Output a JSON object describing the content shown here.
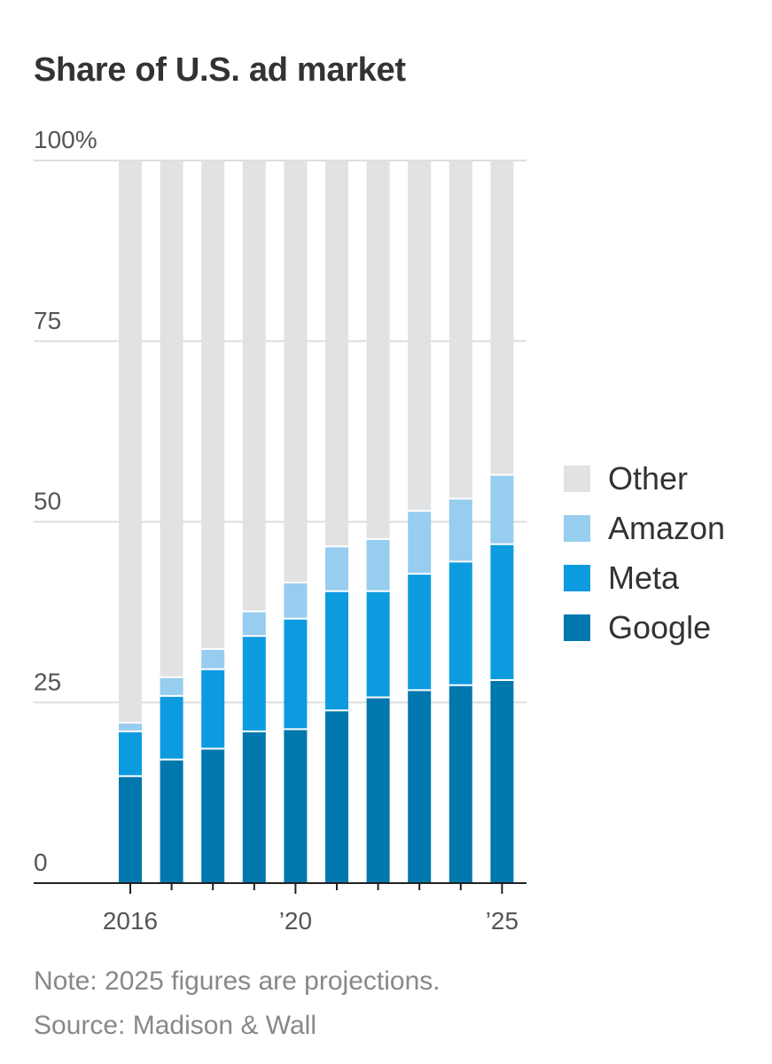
{
  "title": "Share of U.S. ad market",
  "note": "Note: 2025 figures are projections.",
  "source": "Source: Madison & Wall",
  "legend": [
    {
      "label": "Other",
      "color": "#e1e2e4"
    },
    {
      "label": "Amazon",
      "color": "#97cdef"
    },
    {
      "label": "Meta",
      "color": "#0d9be0"
    },
    {
      "label": "Google",
      "color": "#0078ae"
    }
  ],
  "chart_data": {
    "type": "bar",
    "stacked": true,
    "title": "Share of U.S. ad market",
    "categories": [
      "2016",
      "2017",
      "2018",
      "2019",
      "2020",
      "2021",
      "2022",
      "2023",
      "2024",
      "2025"
    ],
    "x_tick_labels": [
      {
        "category": "2016",
        "label": "2016"
      },
      {
        "category": "2020",
        "label": "’20"
      },
      {
        "category": "2025",
        "label": "’25"
      }
    ],
    "y_tick_labels": [
      "0",
      "25",
      "50",
      "75",
      "100%"
    ],
    "y_ticks": [
      0,
      25,
      50,
      75,
      100
    ],
    "ylim": [
      0,
      100
    ],
    "grid": true,
    "legend_position": "right",
    "series": [
      {
        "name": "Google",
        "color": "#0078ae",
        "values": [
          14.8,
          17.1,
          18.6,
          21.0,
          21.3,
          23.9,
          25.7,
          26.7,
          27.4,
          28.1
        ]
      },
      {
        "name": "Meta",
        "color": "#0d9be0",
        "values": [
          6.2,
          8.8,
          11.0,
          13.2,
          15.3,
          16.5,
          14.7,
          16.1,
          17.1,
          18.8
        ]
      },
      {
        "name": "Amazon",
        "color": "#97cdef",
        "values": [
          1.2,
          2.6,
          2.8,
          3.4,
          5.0,
          6.2,
          7.2,
          8.7,
          8.7,
          9.6
        ]
      },
      {
        "name": "Other",
        "color": "#e1e2e4",
        "values": [
          77.8,
          71.5,
          67.6,
          62.4,
          58.4,
          53.4,
          52.4,
          48.5,
          46.8,
          43.5
        ]
      }
    ]
  }
}
